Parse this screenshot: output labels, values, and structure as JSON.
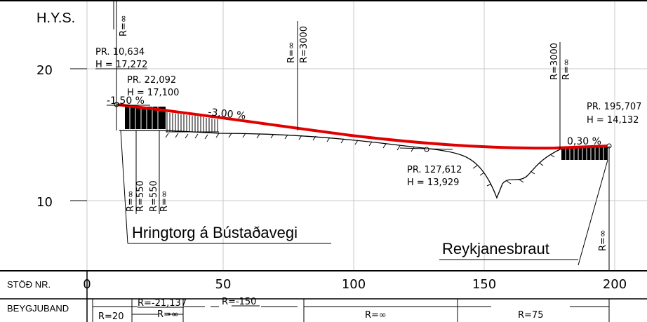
{
  "header": {
    "hys_label": "H.Y.S."
  },
  "y_axis": {
    "ticks": [
      {
        "value": 20,
        "label": "20"
      },
      {
        "value": 10,
        "label": "10"
      }
    ]
  },
  "x_axis": {
    "row_label": "STÖÐ NR.",
    "ticks": [
      "0",
      "50",
      "100",
      "150",
      "200"
    ]
  },
  "beygjuband": {
    "row_label": "BEYGJUBAND",
    "labels": [
      "R=20",
      "R=-21,137",
      "R=∞",
      "R=-150",
      "R=∞",
      "R=75"
    ]
  },
  "points": [
    {
      "pr": "PR. 10,634",
      "h": "H = 17,272"
    },
    {
      "pr": "PR. 22,092",
      "h": "H = 17,100"
    },
    {
      "pr": "PR. 127,612",
      "h": "H = 13,929"
    },
    {
      "pr": "PR. 195,707",
      "h": "H = 14,132"
    }
  ],
  "grades": [
    "-1,50 %",
    "-3,00 %",
    "0,30 %"
  ],
  "vertical_curves": [
    "R=∞",
    "R=∞",
    "R=3000",
    "R=3000",
    "R=∞",
    "R=∞"
  ],
  "left_curves": [
    "R=∞",
    "R=550",
    "R=550",
    "R=∞"
  ],
  "callouts": {
    "left": "Hringtorg á Bústaðavegi",
    "right": "Reykjanesbraut"
  },
  "colors": {
    "design_line": "#e00000",
    "grid": "#c8c8c8",
    "ink": "#000000"
  }
}
